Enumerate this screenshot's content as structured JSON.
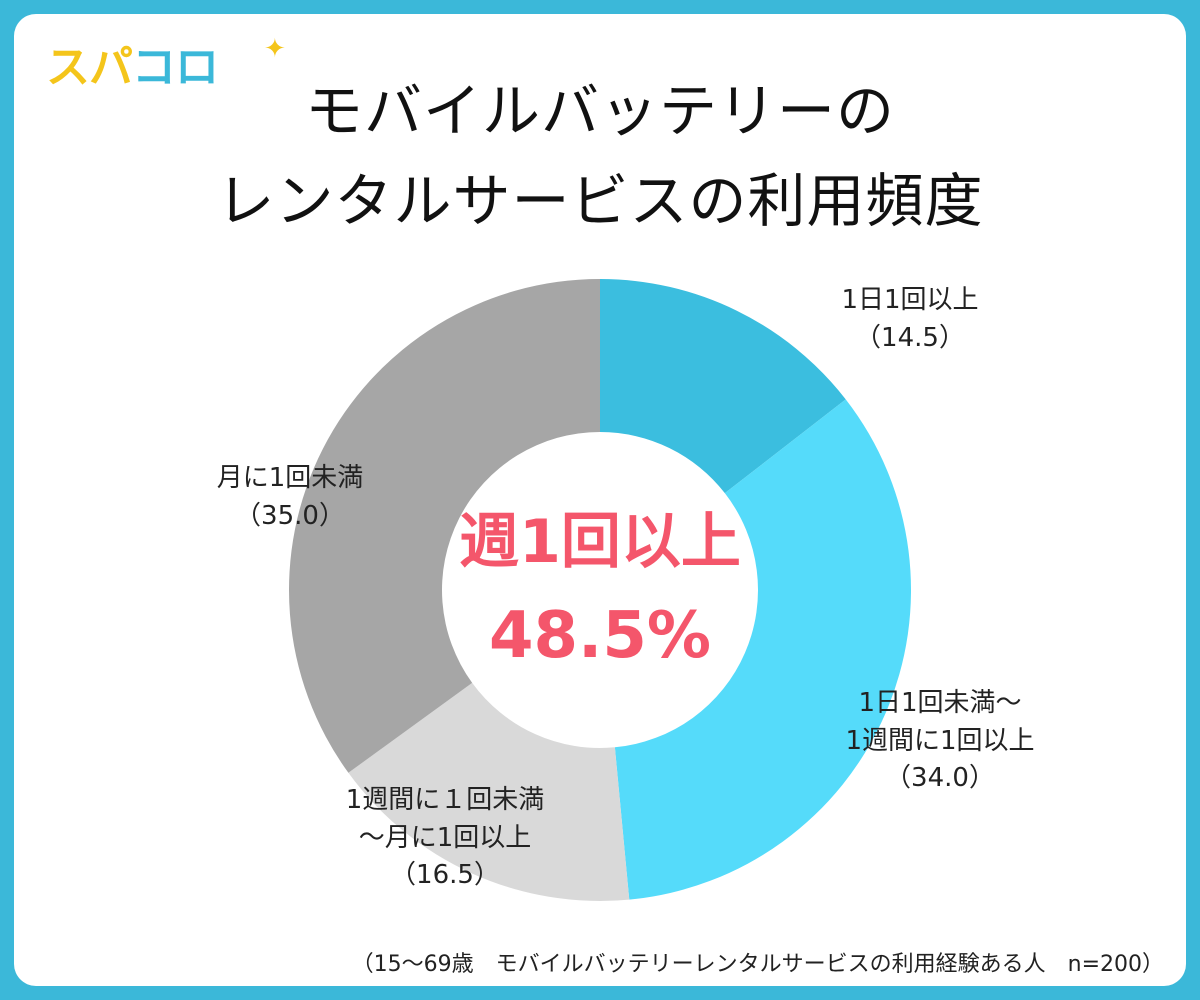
{
  "logo": {
    "part1": "スパ",
    "part2": "コロ",
    "sparkle": "✦"
  },
  "title": {
    "line1": "モバイルバッテリーの",
    "line2": "レンタルサービスの利用頻度"
  },
  "center": {
    "line1": "週1回以上",
    "line2": "48.5%"
  },
  "footnote": "（15～69歳　モバイルバッテリーレンタルサービスの利用経験ある人　n=200）",
  "colors": {
    "border": "#3bb8d9",
    "accent": "#f4566b",
    "slice1": "#3bbedf",
    "slice2": "#55dbfa",
    "slice3": "#d9d9d9",
    "slice4": "#a6a6a6"
  },
  "chart_data": {
    "type": "pie",
    "title": "モバイルバッテリーのレンタルサービスの利用頻度",
    "unit": "%",
    "categories": [
      "1日1回以上",
      "1日1回未満～1週間に1回以上",
      "1週間に１回未満～月に1回以上",
      "月に1回未満"
    ],
    "values": [
      14.5,
      34.0,
      16.5,
      35.0
    ],
    "labels": [
      {
        "lines": [
          "1日1回以上",
          "（14.5）"
        ]
      },
      {
        "lines": [
          "1日1回未満～",
          "1週間に1回以上",
          "（34.0）"
        ]
      },
      {
        "lines": [
          "1週間に１回未満",
          "～月に1回以上",
          "（16.5）"
        ]
      },
      {
        "lines": [
          "月に1回未満",
          "（35.0）"
        ]
      }
    ],
    "donut": true
  }
}
